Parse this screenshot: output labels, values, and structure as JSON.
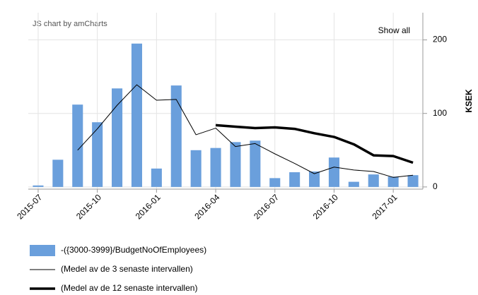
{
  "chart_data": {
    "type": "bar",
    "credit": "JS chart by amCharts",
    "zoom_button": "Show all",
    "y_label": "KSEK",
    "categories": [
      "2015-07",
      null,
      null,
      "2015-10",
      null,
      null,
      "2016-01",
      null,
      null,
      "2016-04",
      null,
      null,
      "2016-07",
      null,
      null,
      "2016-10",
      null,
      null,
      "2017-01",
      null
    ],
    "series": [
      {
        "name": "-({3000-3999}/BudgetNoOfEmployees)",
        "type": "bar",
        "color": "#6a9fdc",
        "values": [
          2,
          37,
          112,
          88,
          134,
          195,
          25,
          138,
          50,
          53,
          61,
          63,
          12,
          20,
          21,
          40,
          7,
          17,
          14,
          16
        ]
      },
      {
        "name": "(Medel av de 3 senaste intervallen)",
        "type": "line",
        "color": "#000000",
        "width": 1,
        "values": [
          null,
          null,
          50,
          79,
          111,
          139,
          118,
          119,
          71,
          80,
          55,
          59,
          45,
          32,
          18,
          27,
          23,
          21,
          13,
          16
        ]
      },
      {
        "name": "(Medel av de 12 senaste intervallen)",
        "type": "line",
        "color": "#000000",
        "width": 3.5,
        "values": [
          null,
          null,
          null,
          null,
          null,
          null,
          null,
          null,
          null,
          84,
          82,
          80,
          81,
          79,
          73,
          68,
          58,
          43,
          42,
          33
        ]
      }
    ],
    "ylim": [
      -3,
      237
    ],
    "yticks": [
      0,
      100,
      200
    ],
    "grid": true
  }
}
